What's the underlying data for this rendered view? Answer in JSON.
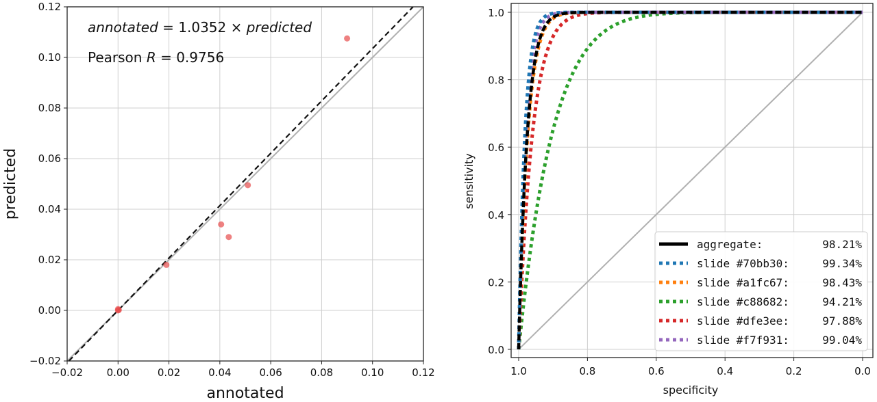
{
  "chart_data": [
    {
      "type": "scatter",
      "xlabel": "annotated",
      "ylabel": "predicted",
      "xlim": [
        -0.02,
        0.12
      ],
      "ylim": [
        -0.02,
        0.12
      ],
      "xticks": [
        "−0.02",
        "0.00",
        "0.02",
        "0.04",
        "0.06",
        "0.08",
        "0.10",
        "0.12"
      ],
      "yticks": [
        "−0.02",
        "0.00",
        "0.02",
        "0.04",
        "0.06",
        "0.08",
        "0.10",
        "0.12"
      ],
      "grid": true,
      "annotation_fit": {
        "lhs": "annotated",
        "eq": " = 1.0352 × ",
        "rhs": "predicted"
      },
      "annotation_r": {
        "pre": "Pearson ",
        "var": "R",
        "post": " = 0.9756"
      },
      "fit_slope": 1.0352,
      "points": [
        {
          "x": 0.0,
          "y": 0.0
        },
        {
          "x": 0.0,
          "y": 0.0005
        },
        {
          "x": 0.0003,
          "y": 0.0002
        },
        {
          "x": 0.019,
          "y": 0.018
        },
        {
          "x": 0.0405,
          "y": 0.034
        },
        {
          "x": 0.0435,
          "y": 0.029
        },
        {
          "x": 0.051,
          "y": 0.0495
        },
        {
          "x": 0.09,
          "y": 0.1075
        }
      ],
      "point_color": "#e74c4c",
      "identity_line_color": "#b0b0b0",
      "fit_line_color": "#111111"
    },
    {
      "type": "line",
      "xlabel": "specificity",
      "ylabel": "sensitivity",
      "xlim": [
        1.0,
        0.0
      ],
      "ylim": [
        0.0,
        1.0
      ],
      "xticks": [
        "1.0",
        "0.8",
        "0.6",
        "0.4",
        "0.2",
        "0.0"
      ],
      "yticks": [
        "0.0",
        "0.2",
        "0.4",
        "0.6",
        "0.8",
        "1.0"
      ],
      "grid": true,
      "legend_position": "bottom-right",
      "series": [
        {
          "name": "aggregate:",
          "auc": "98.21%",
          "color": "#000000",
          "style": "solid",
          "k": 40
        },
        {
          "name": "slide #70bb30:",
          "auc": "99.34%",
          "color": "#1f77b4",
          "style": "dotted",
          "k": 55
        },
        {
          "name": "slide #a1fc67:",
          "auc": "98.43%",
          "color": "#ff7f0e",
          "style": "dotted",
          "k": 38
        },
        {
          "name": "slide #c88682:",
          "auc": "94.21%",
          "color": "#2ca02c",
          "style": "dotted",
          "k": 10
        },
        {
          "name": "slide #dfe3ee:",
          "auc": "97.88%",
          "color": "#d62728",
          "style": "dotted",
          "k": 25
        },
        {
          "name": "slide #f7f931:",
          "auc": "99.04%",
          "color": "#9467bd",
          "style": "dotted",
          "k": 48
        }
      ]
    }
  ]
}
